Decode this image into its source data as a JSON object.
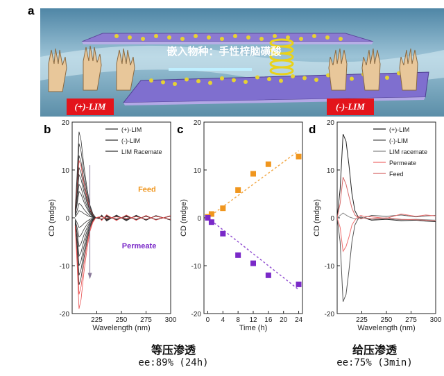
{
  "panels": {
    "a": {
      "letter": "a",
      "banner_text": "嵌入物种：手性梓脑磺酸",
      "left_tag": "(+)-LIM",
      "right_tag": "(-)-LIM"
    },
    "b": {
      "letter": "b",
      "feed_label": "Feed",
      "permeate_label": "Permeate"
    },
    "c": {
      "letter": "c"
    },
    "d": {
      "letter": "d"
    }
  },
  "captions": {
    "left_title": "等压渗透",
    "left_ee": "ee:89% (24h)",
    "right_title": "给压渗透",
    "right_ee": "ee:75% (3min)"
  },
  "colors": {
    "orange": "#f0961e",
    "purple": "#7a29c8",
    "dark_line": "#333333",
    "red_line": "#e85050",
    "tag_red": "#e3141b"
  },
  "chart_data": [
    {
      "panel": "b",
      "type": "line",
      "xlabel": "Wavelength (nm)",
      "ylabel": "CD (mdge)",
      "xlim": [
        200,
        300
      ],
      "ylim": [
        -20,
        20
      ],
      "xticks": [
        225,
        250,
        275,
        300
      ],
      "yticks": [
        -20,
        -10,
        0,
        10,
        20
      ],
      "legend_position": "top-right",
      "legend": [
        "(+)-LIM",
        "(-)-LIM",
        "LIM Racemate"
      ],
      "annotations": [
        "Feed",
        "Permeate"
      ],
      "curve_peaks": [
        18,
        15.5,
        13,
        12,
        10.5,
        9,
        7,
        5.5,
        3,
        1.5,
        -2,
        -4,
        -6,
        -8,
        -10,
        -12,
        -14,
        -16,
        -19
      ],
      "x": [
        203,
        205,
        207,
        209,
        212,
        215,
        218,
        221,
        224,
        227,
        230,
        235,
        245,
        255,
        265,
        275,
        285,
        300
      ]
    },
    {
      "panel": "c",
      "type": "scatter",
      "xlabel": "Time (h)",
      "ylabel": "CD (mdge)",
      "xlim": [
        -1,
        25
      ],
      "ylim": [
        -20,
        20
      ],
      "xticks": [
        0,
        4,
        8,
        12,
        16,
        20,
        24
      ],
      "yticks": [
        -20,
        -10,
        0,
        10,
        20
      ],
      "series": [
        {
          "name": "",
          "color": "orange",
          "x": [
            0,
            1,
            4,
            8,
            12,
            16,
            24
          ],
          "y": [
            0.2,
            0.8,
            2,
            5.8,
            9.2,
            11.2,
            12.8
          ],
          "trend": [
            [
              0,
              0
            ],
            [
              24,
              14
            ]
          ]
        },
        {
          "name": "",
          "color": "purple",
          "x": [
            0,
            1,
            4,
            8,
            12,
            16,
            24
          ],
          "y": [
            0,
            -0.9,
            -3.3,
            -7.8,
            -9.5,
            -12,
            -13.9
          ],
          "trend": [
            [
              0,
              0
            ],
            [
              24,
              -15
            ]
          ]
        }
      ]
    },
    {
      "panel": "d",
      "type": "line",
      "xlabel": "Wavelength (nm)",
      "ylabel": "CD (mdge)",
      "xlim": [
        200,
        300
      ],
      "ylim": [
        -20,
        20
      ],
      "xticks": [
        225,
        250,
        275,
        300
      ],
      "yticks": [
        -20,
        -10,
        0,
        10,
        20
      ],
      "legend_position": "top-right",
      "legend": [
        "(+)-LIM",
        "(-)-LIM",
        "LIM racemate",
        "Permeate",
        "Feed"
      ],
      "x": [
        200,
        203,
        206,
        209,
        212,
        215,
        218,
        221,
        224,
        227,
        235,
        250,
        265,
        280,
        290,
        300
      ],
      "series": [
        {
          "name": "(+)-LIM",
          "y": [
            0,
            6,
            17.5,
            16,
            11,
            5,
            1.5,
            0.3,
            -0.2,
            0,
            -0.5,
            -0.3,
            -0.6,
            -0.5,
            -0.7,
            -0.8
          ]
        },
        {
          "name": "(-)-LIM",
          "y": [
            0,
            -5,
            -17.5,
            -16,
            -11,
            -5,
            -1.5,
            -0.3,
            0.2,
            0,
            0.5,
            0.3,
            0.6,
            0.2,
            0.4,
            0.5
          ]
        },
        {
          "name": "LIM racemate",
          "y": [
            0,
            0.5,
            1,
            0.6,
            0.2,
            0,
            -0.2,
            -0.1,
            0,
            0,
            -0.3,
            -0.2,
            -0.4,
            -0.3,
            -0.4,
            -0.5
          ]
        },
        {
          "name": "Permeate",
          "y": [
            0,
            -2,
            -7,
            -6,
            -4,
            -1.5,
            -0.5,
            0.2,
            0.5,
            0.3,
            0.2,
            -0.1,
            0.8,
            0.3,
            0.6,
            0.4
          ]
        },
        {
          "name": "Feed",
          "y": [
            0,
            3,
            8.5,
            7,
            4.5,
            2,
            0.6,
            0.1,
            -0.1,
            0,
            -0.2,
            0,
            -0.3,
            -0.4,
            -0.5,
            -0.6
          ]
        }
      ]
    }
  ]
}
